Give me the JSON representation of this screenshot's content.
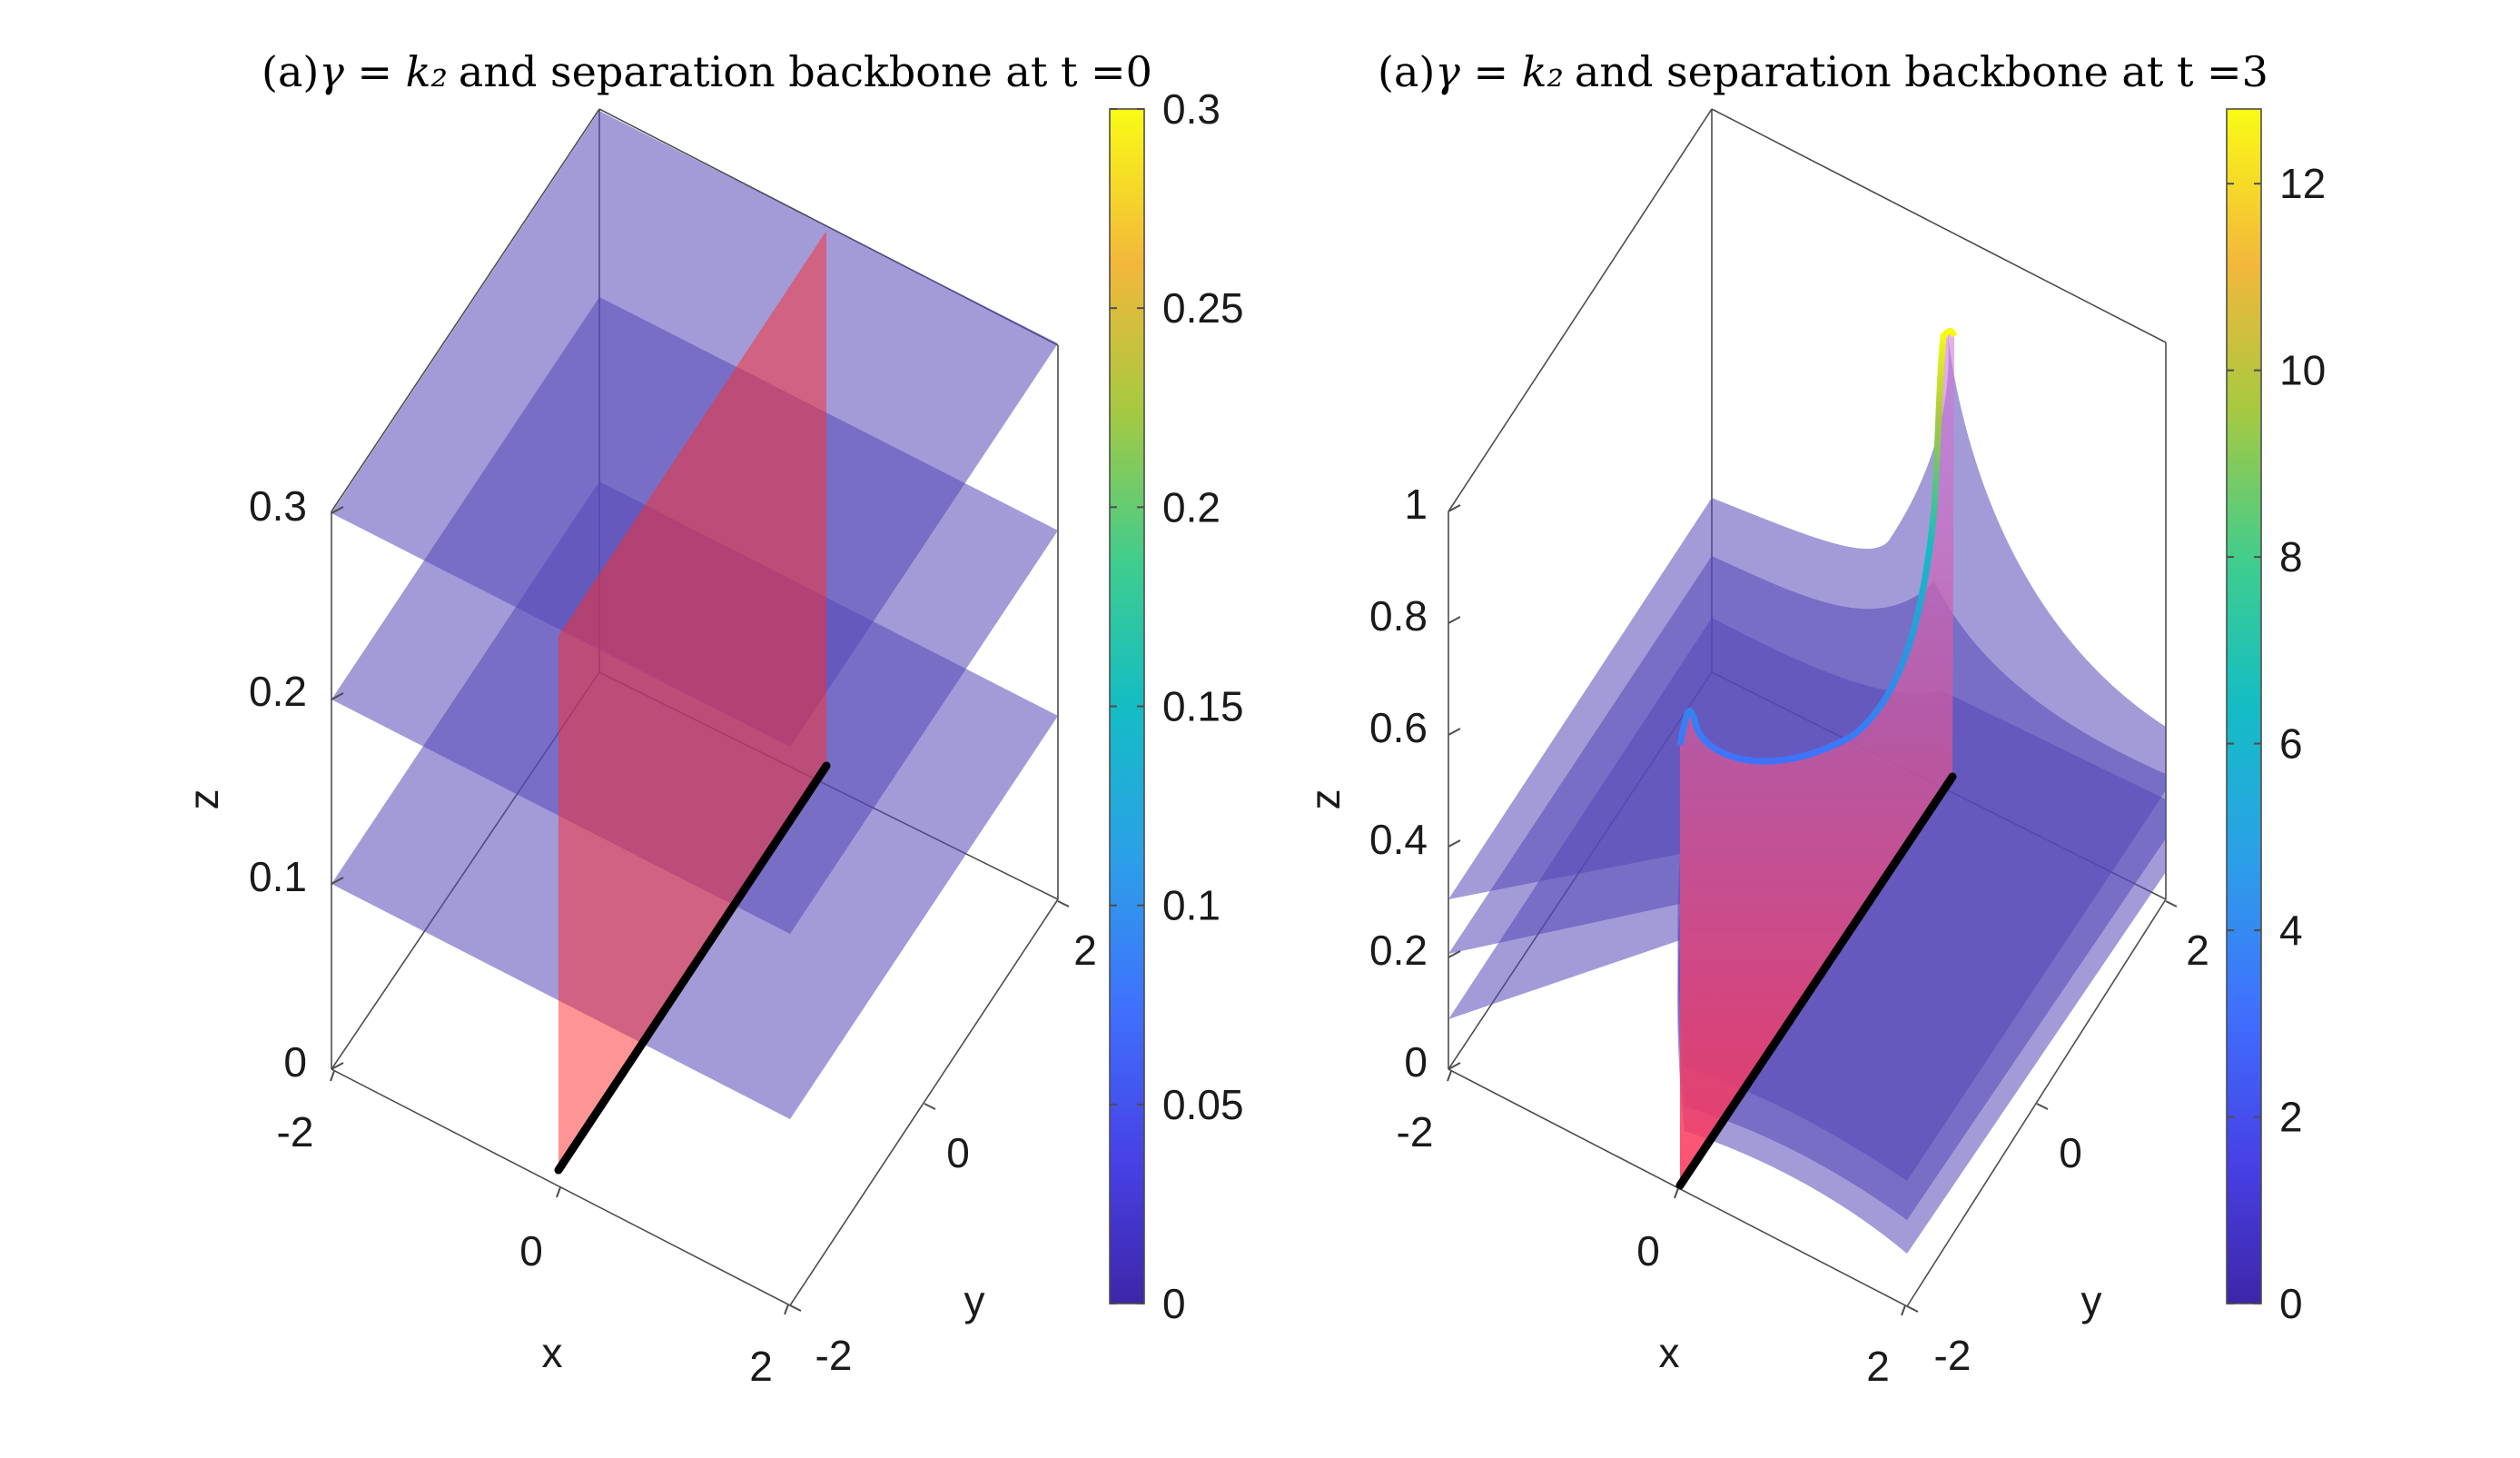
{
  "chart_data": [
    {
      "type": "surface3d",
      "title_prefix": "(a)",
      "title_math": "γ = k₂",
      "title_suffix": "and separation backbone at t =0",
      "xlabel": "x",
      "ylabel": "y",
      "zlabel": "z",
      "x_ticks": [
        "-2",
        "0",
        "2"
      ],
      "y_ticks": [
        "-2",
        "0",
        "2"
      ],
      "z_ticks": [
        "0",
        "0.1",
        "0.2",
        "0.3"
      ],
      "xlim": [
        -2,
        2
      ],
      "ylim": [
        -2,
        2
      ],
      "zlim": [
        0,
        0.3
      ],
      "colorbar": {
        "ticks": [
          "0",
          "0.05",
          "0.1",
          "0.15",
          "0.2",
          "0.25",
          "0.3"
        ],
        "range": [
          0,
          0.3
        ]
      },
      "surfaces": [
        {
          "kind": "level-plane",
          "z": 0.1,
          "color": "#5548b8",
          "opacity": 0.55
        },
        {
          "kind": "level-plane",
          "z": 0.2,
          "color": "#5548b8",
          "opacity": 0.55
        },
        {
          "kind": "level-plane",
          "z": 0.3,
          "color": "#5548b8",
          "opacity": 0.55
        },
        {
          "kind": "separation-sheet",
          "x": 0,
          "z_range": [
            0,
            0.3
          ],
          "color": "#ff2a2a"
        },
        {
          "kind": "backbone-line",
          "x": 0,
          "z": 0,
          "y_range": [
            -2,
            0.7
          ],
          "color": "#000000"
        }
      ]
    },
    {
      "type": "surface3d",
      "title_prefix": "(a)",
      "title_math": "γ = k₂",
      "title_suffix": "and separation backbone at t =3",
      "xlabel": "x",
      "ylabel": "y",
      "zlabel": "z",
      "x_ticks": [
        "-2",
        "0",
        "2"
      ],
      "y_ticks": [
        "-2",
        "0",
        "2"
      ],
      "z_ticks": [
        "0",
        "0.2",
        "0.4",
        "0.6",
        "0.8",
        "1"
      ],
      "xlim": [
        -2,
        2
      ],
      "ylim": [
        -2,
        2
      ],
      "zlim": [
        0,
        1
      ],
      "colorbar": {
        "ticks": [
          "0",
          "2",
          "4",
          "6",
          "8",
          "10",
          "12"
        ],
        "range": [
          0,
          12.8
        ]
      },
      "surfaces": [
        {
          "kind": "level-surface",
          "level": 1,
          "far_height": 0.2,
          "peak_height": 0.45,
          "color": "#5548b8",
          "opacity": 0.55
        },
        {
          "kind": "level-surface",
          "level": 2,
          "far_height": 0.3,
          "peak_height": 0.7,
          "color": "#5548b8",
          "opacity": 0.55
        },
        {
          "kind": "level-surface",
          "level": 3,
          "far_height": 0.4,
          "peak_height": 1.0,
          "color": "#5548b8",
          "opacity": 0.55
        },
        {
          "kind": "separation-sheet",
          "x": 0,
          "color": "#ff2a2a"
        },
        {
          "kind": "backbone-line",
          "x": 0,
          "z": 0,
          "color": "#000000"
        }
      ]
    }
  ]
}
